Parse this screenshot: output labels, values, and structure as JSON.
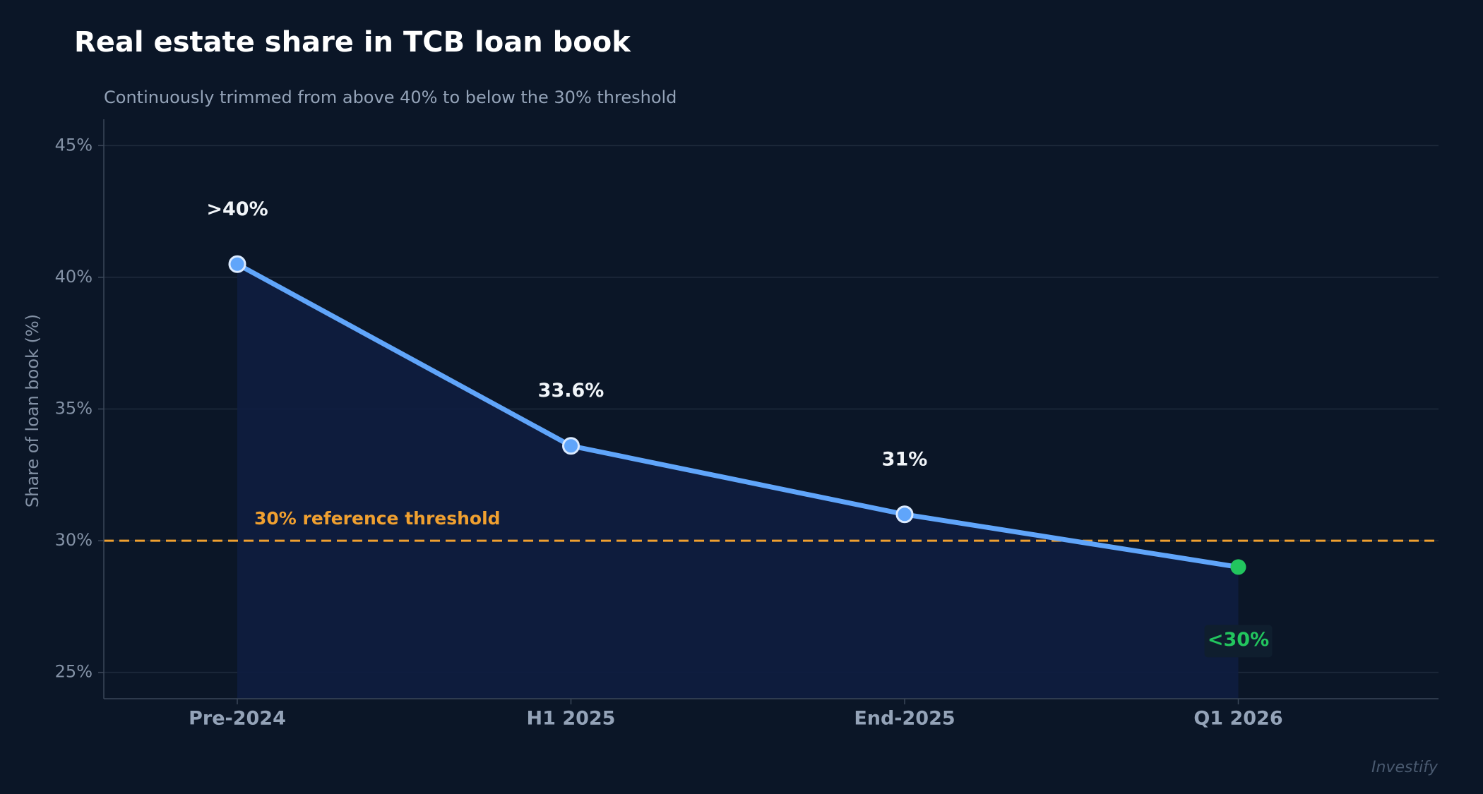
{
  "chart_data": {
    "type": "line",
    "title": "Real estate share in TCB loan book",
    "subtitle": "Continuously trimmed from above 40% to below the 30% threshold",
    "y_label": "Share of loan book (%)",
    "watermark": "Investify",
    "categories": [
      "Pre-2024",
      "H1 2025",
      "End-2025",
      "Q1 2026"
    ],
    "values": [
      40.5,
      33.6,
      31,
      29
    ],
    "value_labels": [
      ">40%",
      "33.6%",
      "31%",
      "<30%"
    ],
    "color": "#60a5fa",
    "point_colors": [
      "#60a5fa",
      "#60a5fa",
      "#60a5fa",
      "#22c55e"
    ],
    "area_color": "#0e1d40",
    "ylim": [
      24,
      46
    ],
    "yticks": [
      {
        "value": 25,
        "label": "25%"
      },
      {
        "value": 30,
        "label": "30%"
      },
      {
        "value": 35,
        "label": "35%"
      },
      {
        "value": 40,
        "label": "40%"
      },
      {
        "value": 45,
        "label": "45%"
      }
    ],
    "grid": true,
    "reference_line": {
      "value": 30,
      "label": "30% reference threshold",
      "color": "#f0a030"
    }
  }
}
